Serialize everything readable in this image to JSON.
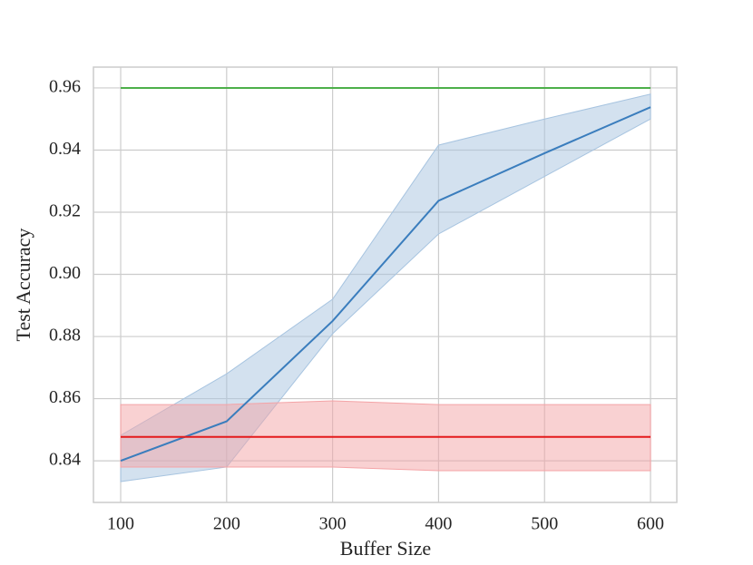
{
  "chart_data": {
    "type": "line",
    "x_label": "Buffer Size",
    "y_label": "Test Accuracy",
    "x": [
      100,
      200,
      300,
      400,
      500,
      600
    ],
    "series": [
      {
        "color": "#3a7dbd",
        "band_color": "#a7c4e0",
        "values": [
          0.84,
          0.8527,
          0.885,
          0.9237,
          0.939,
          0.9538
        ],
        "lower": [
          0.8333,
          0.838,
          0.8809,
          0.913,
          0.9315,
          0.95
        ],
        "upper": [
          0.8482,
          0.868,
          0.892,
          0.9416,
          0.95,
          0.958
        ]
      },
      {
        "color": "#e41a1c",
        "band_color": "#f4a3a6",
        "values": [
          0.8477,
          0.8477,
          0.8477,
          0.8477,
          0.8477,
          0.8477
        ],
        "lower": [
          0.838,
          0.838,
          0.838,
          0.8368,
          0.8368,
          0.8368
        ],
        "upper": [
          0.8581,
          0.8581,
          0.8593,
          0.8581,
          0.8581,
          0.8581
        ]
      },
      {
        "color": "#4daf4a",
        "values": [
          0.96,
          0.96,
          0.96,
          0.96,
          0.96,
          0.96
        ]
      }
    ],
    "xlim": [
      74.3,
      624.8
    ],
    "ylim": [
      0.8266,
      0.9667
    ],
    "xticks": [
      100,
      200,
      300,
      400,
      500,
      600
    ],
    "yticks": [
      0.84,
      0.86,
      0.88,
      {
        "value": 0.9,
        "label": "0.90"
      },
      0.92,
      0.94,
      0.96
    ],
    "grid": true
  }
}
